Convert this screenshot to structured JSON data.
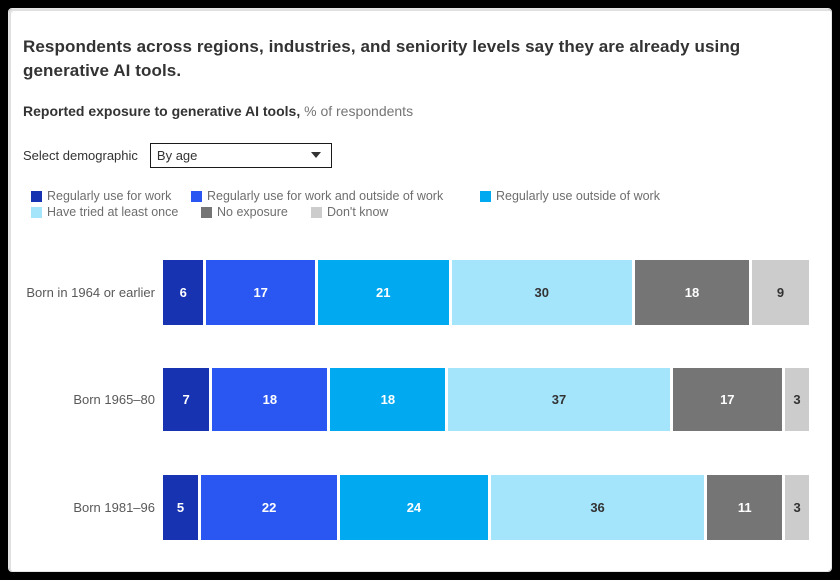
{
  "title": "Respondents across regions, industries, and seniority levels say they are already using generative AI tools.",
  "subtitle": {
    "bold": "Reported exposure to generative AI tools,",
    "regular": "% of respondents"
  },
  "demographic_selector": {
    "label": "Select demographic",
    "value": "By age"
  },
  "chart_data": {
    "type": "bar",
    "stacked": true,
    "orientation": "horizontal",
    "unit": "% of respondents",
    "xlim": [
      0,
      100
    ],
    "legend_position": "top",
    "categories": [
      "Born in 1964 or earlier",
      "Born 1965–80",
      "Born 1981–96"
    ],
    "series": [
      {
        "name": "Regularly use for work",
        "color": "#1733b2",
        "text_color": "#ffffff",
        "values": [
          6,
          7,
          5
        ]
      },
      {
        "name": "Regularly use for work and outside of work",
        "color": "#2a57f2",
        "text_color": "#ffffff",
        "values": [
          17,
          18,
          22
        ]
      },
      {
        "name": "Regularly use outside of work",
        "color": "#00a9f0",
        "text_color": "#ffffff",
        "values": [
          21,
          18,
          24
        ]
      },
      {
        "name": "Have tried at least once",
        "color": "#a5e5fc",
        "text_color": "#333333",
        "values": [
          30,
          37,
          36
        ]
      },
      {
        "name": "No exposure",
        "color": "#757575",
        "text_color": "#ffffff",
        "values": [
          18,
          17,
          11
        ]
      },
      {
        "name": "Don't know",
        "color": "#cccccc",
        "text_color": "#333333",
        "values": [
          9,
          3,
          3
        ]
      }
    ]
  }
}
